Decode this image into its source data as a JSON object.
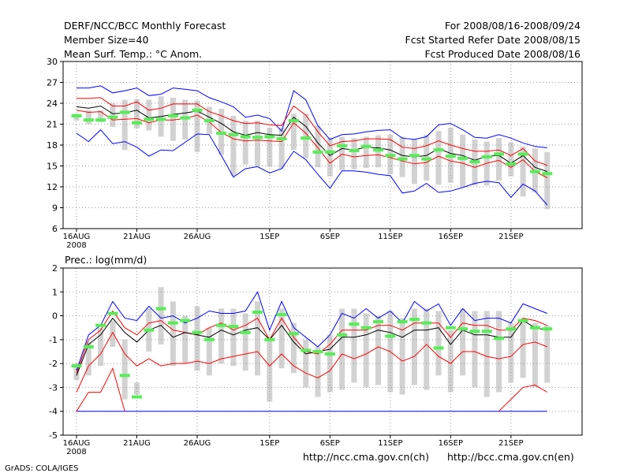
{
  "header": {
    "line1_left": "DERF/NCC/BCC Monthly Forecast",
    "line2_left": "Member Size=40",
    "line3_left": "Mean Surf. Temp.: °C Anom.",
    "line1_right": "For 2008/08/16-2008/09/24",
    "line2_right": "Fcst Started Refer Date 2008/08/15",
    "line3_right": "Fcst Produced Date 2008/08/16"
  },
  "footer": {
    "credit": "GrADS: COLA/IGES",
    "url_ch": "http://ncc.cma.gov.cn(ch)",
    "url_en": "http://bcc.cma.gov.cn(en)"
  },
  "colors": {
    "max": "#0000ff",
    "quartile": "#ff0000",
    "mean": "#000000",
    "obs": "#55ee55",
    "box": "#d2d2d2",
    "grid": "#9a9a9a"
  },
  "chart_data": [
    {
      "type": "line",
      "title": "Mean Surf. Temp.: °C Anom.",
      "ylim": [
        6,
        30
      ],
      "yticks": [
        6,
        9,
        12,
        15,
        18,
        21,
        24,
        27,
        30
      ],
      "xticks": [
        {
          "day": 0,
          "label": "16AUG",
          "sub": "2008"
        },
        {
          "day": 5,
          "label": "21AUG"
        },
        {
          "day": 10,
          "label": "26AUG"
        },
        {
          "day": 16,
          "label": "1SEP"
        },
        {
          "day": 21,
          "label": "6SEP"
        },
        {
          "day": 26,
          "label": "11SEP"
        },
        {
          "day": 31,
          "label": "16SEP"
        },
        {
          "day": 36,
          "label": "21SEP"
        }
      ],
      "x_days": [
        0,
        1,
        2,
        3,
        4,
        5,
        6,
        7,
        8,
        9,
        10,
        11,
        12,
        13,
        14,
        15,
        16,
        17,
        18,
        19,
        20,
        21,
        22,
        23,
        24,
        25,
        26,
        27,
        28,
        29,
        30,
        31,
        32,
        33,
        34,
        35,
        36,
        37,
        38,
        39
      ],
      "series": [
        {
          "name": "max",
          "color_key": "max",
          "values": [
            26.2,
            26.2,
            26.5,
            25.5,
            25.8,
            26.2,
            25.1,
            25.3,
            26.2,
            26.0,
            25.8,
            24.8,
            24.2,
            23.5,
            22.0,
            22.3,
            21.8,
            20.0,
            25.8,
            24.5,
            20.8,
            18.8,
            19.5,
            19.6,
            19.9,
            20.1,
            20.2,
            19.0,
            18.8,
            19.2,
            20.9,
            21.1,
            20.2,
            19.1,
            19.0,
            19.5,
            19.0,
            18.3,
            17.8,
            17.6
          ]
        },
        {
          "name": "upper quartile",
          "color_key": "quartile",
          "values": [
            24.7,
            24.7,
            24.8,
            23.6,
            23.6,
            24.2,
            23.0,
            23.3,
            23.9,
            23.9,
            23.9,
            22.8,
            22.2,
            21.5,
            21.1,
            21.2,
            20.9,
            20.8,
            23.6,
            22.3,
            19.9,
            17.9,
            18.5,
            18.6,
            18.9,
            18.9,
            18.8,
            17.7,
            17.5,
            17.9,
            18.6,
            18.0,
            17.5,
            17.1,
            17.1,
            17.3,
            16.5,
            17.5,
            15.7,
            15.1
          ]
        },
        {
          "name": "mean",
          "color_key": "mean",
          "values": [
            23.5,
            23.3,
            23.6,
            22.5,
            22.6,
            23.0,
            21.9,
            22.1,
            22.4,
            22.6,
            22.9,
            22.0,
            21.1,
            19.9,
            19.4,
            19.8,
            19.5,
            19.4,
            22.0,
            20.7,
            18.3,
            16.5,
            17.5,
            17.3,
            17.7,
            17.6,
            17.3,
            16.5,
            16.3,
            16.5,
            17.5,
            16.8,
            16.5,
            15.8,
            16.4,
            16.5,
            15.4,
            16.5,
            14.8,
            14.2
          ]
        },
        {
          "name": "lower quartile",
          "color_key": "quartile",
          "values": [
            23.0,
            22.7,
            22.8,
            21.6,
            21.7,
            21.8,
            21.2,
            21.6,
            21.6,
            21.8,
            22.3,
            21.3,
            19.8,
            18.9,
            18.6,
            18.7,
            18.6,
            18.5,
            21.2,
            19.7,
            17.6,
            15.4,
            16.7,
            16.3,
            16.5,
            16.6,
            16.2,
            15.7,
            15.3,
            15.5,
            16.4,
            15.7,
            15.4,
            14.8,
            15.4,
            15.8,
            14.8,
            15.9,
            14.2,
            13.3
          ]
        },
        {
          "name": "min",
          "color_key": "max",
          "values": [
            19.7,
            18.5,
            20.2,
            18.2,
            18.5,
            17.7,
            16.4,
            17.3,
            17.2,
            18.4,
            19.6,
            19.5,
            16.5,
            13.4,
            14.6,
            14.9,
            14.0,
            14.6,
            17.1,
            15.9,
            13.8,
            11.8,
            14.3,
            14.3,
            14.1,
            13.8,
            13.6,
            11.1,
            11.4,
            12.5,
            11.2,
            11.4,
            11.9,
            12.5,
            12.8,
            12.6,
            10.5,
            12.4,
            11.4,
            9.4
          ]
        }
      ],
      "boxes": {
        "low": [
          21.5,
          21.0,
          21.3,
          20.6,
          17.3,
          20.4,
          20.1,
          19.2,
          18.6,
          18.8,
          17.0,
          19.6,
          16.6,
          13.6,
          15.2,
          15.0,
          14.9,
          14.6,
          17.3,
          16.1,
          14.8,
          13.5,
          14.4,
          14.5,
          14.7,
          14.8,
          13.8,
          13.4,
          12.4,
          12.9,
          12.3,
          12.6,
          12.0,
          12.2,
          12.2,
          12.9,
          13.5,
          10.6,
          11.2,
          8.8
        ],
        "high": [
          22.5,
          23.0,
          23.0,
          24.0,
          24.5,
          24.6,
          24.5,
          25.0,
          24.8,
          24.5,
          24.4,
          23.5,
          23.2,
          22.2,
          21.5,
          21.5,
          20.5,
          20.5,
          22.5,
          22.5,
          20.8,
          19.0,
          19.2,
          19.0,
          19.2,
          19.4,
          19.5,
          19.2,
          18.8,
          19.5,
          20.0,
          20.5,
          19.5,
          18.8,
          18.5,
          19.0,
          18.4,
          17.8,
          17.5,
          17.0
        ]
      },
      "obs": [
        22.2,
        21.6,
        21.6,
        22.0,
        22.7,
        21.2,
        21.7,
        21.7,
        22.2,
        21.9,
        23.0,
        21.5,
        19.7,
        19.5,
        19.2,
        19.1,
        19.2,
        18.9,
        21.5,
        19.0,
        17.0,
        17.0,
        17.9,
        17.2,
        17.8,
        17.3,
        16.5,
        16.0,
        16.5,
        16.0,
        17.3,
        16.4,
        16.1,
        15.6,
        16.3,
        16.7,
        15.3,
        16.7,
        14.2,
        13.9
      ]
    },
    {
      "type": "line",
      "title": "Prec.: log(mm/d)",
      "ylim": [
        -5,
        2
      ],
      "yticks": [
        -5,
        -4,
        -3,
        -2,
        -1,
        0,
        1,
        2
      ],
      "xticks": [
        {
          "day": 0,
          "label": "16AUG",
          "sub": "2008"
        },
        {
          "day": 5,
          "label": "21AUG"
        },
        {
          "day": 10,
          "label": "26AUG"
        },
        {
          "day": 16,
          "label": "1SEP"
        },
        {
          "day": 21,
          "label": "6SEP"
        },
        {
          "day": 26,
          "label": "11SEP"
        },
        {
          "day": 31,
          "label": "16SEP"
        },
        {
          "day": 36,
          "label": "21SEP"
        }
      ],
      "x_days": [
        0,
        1,
        2,
        3,
        4,
        5,
        6,
        7,
        8,
        9,
        10,
        11,
        12,
        13,
        14,
        15,
        16,
        17,
        18,
        19,
        20,
        21,
        22,
        23,
        24,
        25,
        26,
        27,
        28,
        29,
        30,
        31,
        32,
        33,
        34,
        35,
        36,
        37,
        38,
        39
      ],
      "series": [
        {
          "name": "max",
          "color_key": "max",
          "values": [
            -2.3,
            -0.8,
            -0.4,
            0.6,
            -0.1,
            -0.2,
            0.4,
            -0.1,
            0.0,
            -0.3,
            -0.1,
            0.2,
            0.1,
            0.1,
            0.2,
            1.0,
            -0.6,
            0.6,
            -0.5,
            -0.9,
            -1.3,
            -0.8,
            0.1,
            -0.1,
            0.3,
            -0.1,
            0.2,
            -0.3,
            0.6,
            0.2,
            0.5,
            -0.4,
            0.3,
            -0.2,
            -0.1,
            -0.1,
            -0.3,
            0.5,
            0.3,
            0.1
          ]
        },
        {
          "name": "upper quartile",
          "color_key": "quartile",
          "values": [
            -2.4,
            -1.0,
            -0.6,
            0.2,
            -0.5,
            -0.8,
            -0.3,
            -0.2,
            -0.6,
            -0.7,
            -0.8,
            -0.5,
            -0.3,
            -0.6,
            -0.4,
            -0.1,
            -1.0,
            -0.1,
            -0.9,
            -1.5,
            -1.6,
            -1.2,
            -0.6,
            -0.6,
            -0.6,
            -0.4,
            -0.4,
            -0.6,
            -0.3,
            -0.3,
            -0.3,
            -0.9,
            -0.3,
            -0.4,
            -0.4,
            -0.6,
            -0.6,
            -0.1,
            -0.2,
            -0.4
          ]
        },
        {
          "name": "mean",
          "color_key": "mean",
          "values": [
            -2.5,
            -1.2,
            -0.8,
            -0.1,
            -0.7,
            -1.1,
            -0.6,
            -0.4,
            -0.9,
            -0.7,
            -0.8,
            -0.9,
            -0.6,
            -0.8,
            -0.6,
            -0.5,
            -1.0,
            -0.4,
            -1.1,
            -1.6,
            -1.5,
            -1.4,
            -0.9,
            -0.9,
            -0.8,
            -0.6,
            -0.7,
            -0.9,
            -0.6,
            -0.6,
            -0.5,
            -1.2,
            -0.6,
            -0.8,
            -0.8,
            -0.9,
            -0.9,
            -0.2,
            -0.5,
            -0.6
          ]
        },
        {
          "name": "lower quartile",
          "color_key": "quartile",
          "values": [
            -3.2,
            -2.1,
            -1.6,
            -0.7,
            -1.6,
            -2.1,
            -1.8,
            -2.1,
            -2.0,
            -2.0,
            -1.9,
            -2.0,
            -1.8,
            -1.7,
            -1.6,
            -1.5,
            -2.1,
            -1.6,
            -2.1,
            -2.4,
            -2.6,
            -2.3,
            -1.6,
            -1.8,
            -1.6,
            -1.3,
            -1.5,
            -1.9,
            -1.7,
            -1.2,
            -1.7,
            -2.0,
            -1.5,
            -1.5,
            -1.7,
            -1.8,
            -1.7,
            -1.2,
            -1.1,
            -1.3
          ]
        },
        {
          "name": "min",
          "color_key": "max",
          "values": [
            -4,
            -4,
            -4,
            -4,
            -4,
            -4,
            -4,
            -4,
            -4,
            -4,
            -4,
            -4,
            -4,
            -4,
            -4,
            -4,
            -4,
            -4,
            -4,
            -4,
            -4,
            -4,
            -4,
            -4,
            -4,
            -4,
            -4,
            -4,
            -4,
            -4,
            -4,
            -4,
            -4,
            -4,
            -4,
            -4,
            -4,
            -4,
            -4,
            -4
          ]
        }
      ],
      "extra_red": [
        {
          "start": 0,
          "values": [
            -4.0,
            -3.2,
            -3.2,
            -2.2,
            -4.0
          ]
        },
        {
          "start": 35,
          "values": [
            -4.0,
            -3.5,
            -3.0,
            -2.9,
            -3.2
          ]
        }
      ],
      "boxes": {
        "low": [
          -2.7,
          -2.5,
          -2.1,
          -1.3,
          -3.5,
          -3.3,
          -1.5,
          -1.2,
          -2.1,
          -2.0,
          -2.3,
          -2.5,
          -2.0,
          -2.1,
          -2.3,
          -2.5,
          -3.6,
          -2.2,
          -2.4,
          -3.0,
          -3.4,
          -3.2,
          -3.1,
          -2.8,
          -3.0,
          -2.9,
          -3.2,
          -3.3,
          -2.9,
          -3.1,
          -2.5,
          -3.2,
          -2.5,
          -3.0,
          -3.4,
          -3.2,
          -2.8,
          -2.6,
          -3.0,
          -2.8
        ],
        "high": [
          -2.0,
          -1.1,
          -0.5,
          -0.2,
          -1.0,
          -2.8,
          0.3,
          1.2,
          0.6,
          0.0,
          0.4,
          -0.5,
          0.3,
          0.3,
          0.1,
          0.6,
          -1.0,
          0.3,
          -0.3,
          -1.0,
          -1.3,
          -0.8,
          0.3,
          0.3,
          0.1,
          0.0,
          0.2,
          -0.1,
          0.3,
          0.3,
          0.2,
          -0.6,
          0.3,
          0.2,
          0.2,
          0.2,
          -0.3,
          -0.2,
          -0.3,
          -0.4
        ]
      },
      "obs": [
        -2.1,
        -1.3,
        -0.4,
        0.1,
        -2.5,
        -3.4,
        -0.6,
        0.3,
        -0.3,
        -0.2,
        -0.7,
        -1.0,
        -0.4,
        -0.45,
        -0.7,
        0.15,
        -1.0,
        0.05,
        -0.75,
        -1.45,
        -1.5,
        -1.6,
        -0.8,
        -0.35,
        -0.5,
        -0.25,
        -0.85,
        -0.25,
        -0.15,
        -0.3,
        -1.35,
        -0.5,
        -0.55,
        -0.65,
        -0.65,
        -0.95,
        -0.55,
        -0.2,
        -0.5,
        -0.55
      ]
    }
  ]
}
